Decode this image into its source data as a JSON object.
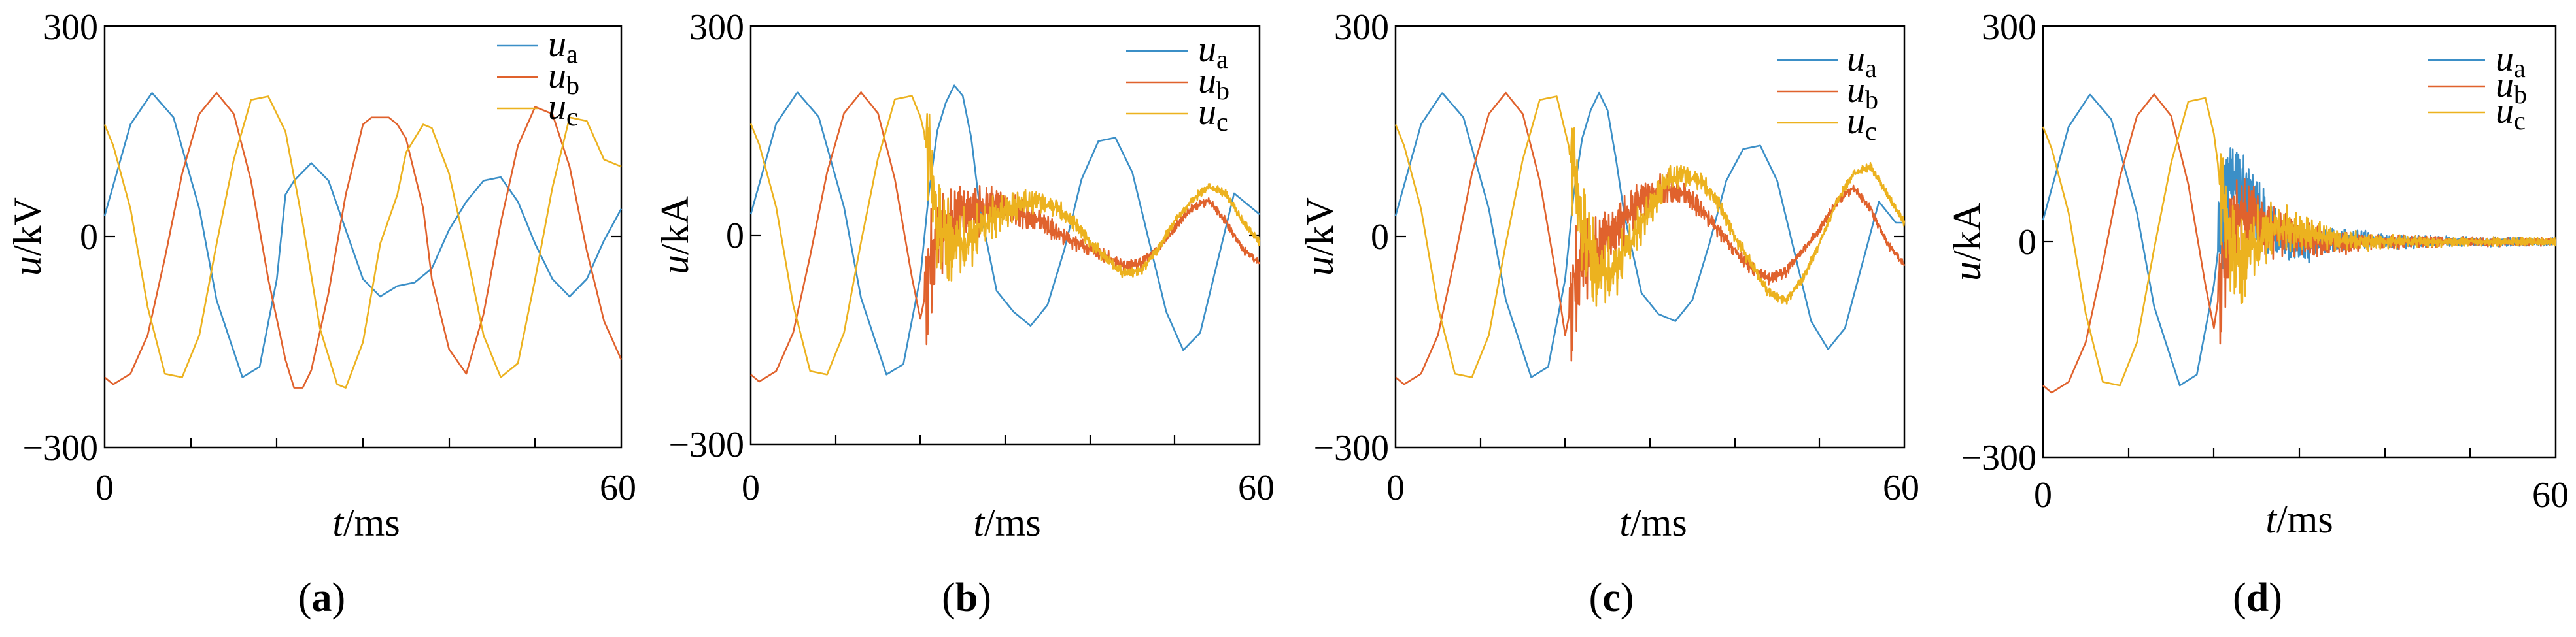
{
  "figure": {
    "series_colors": {
      "ua": "#3b8fc7",
      "ub": "#e0622d",
      "uc": "#ecb21f"
    }
  },
  "chart_data": [
    {
      "type": "line",
      "panel": "a",
      "caption": {
        "open": "(",
        "letter": "a",
        "close": ")"
      },
      "xlabel": {
        "var": "t",
        "unit": "/ms"
      },
      "ylabel": {
        "var": "u",
        "unit": "/kV"
      },
      "xlim": [
        0,
        60
      ],
      "ylim": [
        -300,
        300
      ],
      "x_tick_labels": [
        "0",
        "60"
      ],
      "y_tick_labels": [
        "300",
        "0",
        "−300"
      ],
      "legend": {
        "position": "top-right",
        "entries": [
          {
            "base": "u",
            "sub": "a"
          },
          {
            "base": "u",
            "sub": "b"
          },
          {
            "base": "u",
            "sub": "c"
          }
        ]
      },
      "series": [
        {
          "name": "ua",
          "color": "#3b8fc7",
          "x": [
            0,
            3,
            5.5,
            8,
            11,
            13,
            16,
            18,
            20,
            21,
            22,
            24,
            26,
            28,
            30,
            32,
            34,
            36,
            38,
            40,
            42,
            44,
            46,
            48,
            50,
            52,
            54,
            56,
            58,
            60
          ],
          "y": [
            30,
            160,
            205,
            170,
            40,
            -90,
            -200,
            -185,
            -60,
            60,
            80,
            105,
            80,
            10,
            -60,
            -85,
            -70,
            -65,
            -45,
            10,
            50,
            80,
            85,
            50,
            -10,
            -60,
            -85,
            -60,
            -5,
            40
          ]
        },
        {
          "name": "ub",
          "color": "#e0622d",
          "x": [
            0,
            1,
            3,
            5,
            7,
            9,
            11,
            13,
            15,
            17,
            19,
            21,
            22,
            23,
            24,
            26,
            28,
            30,
            31,
            33,
            34,
            35,
            37,
            38,
            40,
            42,
            44,
            46,
            48,
            50,
            52,
            54,
            56,
            58,
            60
          ],
          "y": [
            -200,
            -210,
            -195,
            -140,
            -30,
            90,
            175,
            205,
            175,
            80,
            -60,
            -175,
            -215,
            -215,
            -190,
            -80,
            60,
            160,
            170,
            170,
            160,
            140,
            40,
            -60,
            -160,
            -195,
            -110,
            20,
            130,
            185,
            175,
            100,
            -20,
            -120,
            -175
          ]
        },
        {
          "name": "uc",
          "color": "#ecb21f",
          "x": [
            0,
            1,
            3,
            5,
            7,
            9,
            11,
            13,
            15,
            17,
            19,
            21,
            23,
            25,
            27,
            28,
            30,
            32,
            34,
            35,
            37,
            38,
            40,
            42,
            44,
            46,
            48,
            50,
            52,
            54,
            56,
            58,
            60
          ],
          "y": [
            160,
            130,
            40,
            -100,
            -195,
            -200,
            -140,
            -10,
            110,
            195,
            200,
            150,
            20,
            -130,
            -210,
            -215,
            -150,
            -10,
            60,
            120,
            160,
            155,
            90,
            -20,
            -140,
            -200,
            -180,
            -60,
            70,
            170,
            165,
            110,
            100
          ]
        }
      ]
    },
    {
      "type": "line",
      "panel": "b",
      "caption": {
        "open": "(",
        "letter": "b",
        "close": ")"
      },
      "xlabel": {
        "var": "t",
        "unit": "/ms"
      },
      "ylabel": {
        "var": "u",
        "unit": "/kA"
      },
      "xlim": [
        0,
        60
      ],
      "ylim": [
        -300,
        300
      ],
      "x_tick_labels": [
        "0",
        "60"
      ],
      "y_tick_labels": [
        "300",
        "0",
        "−300"
      ],
      "legend": {
        "position": "top-right",
        "entries": [
          {
            "base": "u",
            "sub": "a"
          },
          {
            "base": "u",
            "sub": "b"
          },
          {
            "base": "u",
            "sub": "c"
          }
        ]
      },
      "series": [
        {
          "name": "ua",
          "color": "#3b8fc7",
          "x": [
            0,
            3,
            5.5,
            8,
            11,
            13,
            16,
            18,
            20,
            21,
            22,
            23,
            24,
            25,
            26,
            27,
            29,
            31,
            33,
            35,
            37,
            39,
            41,
            43,
            45,
            47,
            49,
            51,
            53,
            55,
            57,
            59,
            60
          ],
          "y": [
            30,
            160,
            205,
            170,
            40,
            -90,
            -200,
            -185,
            -60,
            60,
            150,
            190,
            215,
            200,
            140,
            40,
            -80,
            -110,
            -130,
            -100,
            -20,
            80,
            135,
            140,
            90,
            -10,
            -110,
            -165,
            -140,
            -40,
            60,
            40,
            30
          ]
        },
        {
          "name": "ub",
          "color": "#e0622d",
          "noisy": true,
          "x": [
            0,
            1,
            3,
            5,
            7,
            9,
            11,
            13,
            15,
            17,
            19,
            20,
            21,
            22,
            24,
            26,
            28,
            30,
            32,
            34,
            36,
            38,
            40,
            42,
            44,
            46,
            48,
            50,
            52,
            54,
            56,
            58,
            60
          ],
          "y": [
            -200,
            -210,
            -195,
            -140,
            -30,
            90,
            175,
            205,
            175,
            80,
            -60,
            -120,
            -60,
            0,
            20,
            35,
            40,
            40,
            30,
            20,
            5,
            -10,
            -20,
            -30,
            -45,
            -40,
            -20,
            10,
            40,
            50,
            20,
            -20,
            -40
          ]
        },
        {
          "name": "uc",
          "color": "#ecb21f",
          "noisy": true,
          "x": [
            0,
            1,
            3,
            5,
            7,
            9,
            11,
            13,
            15,
            17,
            19,
            20,
            21,
            22,
            24,
            26,
            28,
            30,
            32,
            34,
            36,
            38,
            40,
            42,
            44,
            46,
            48,
            50,
            52,
            54,
            56,
            58,
            60
          ],
          "y": [
            160,
            130,
            40,
            -100,
            -195,
            -200,
            -140,
            -10,
            110,
            195,
            200,
            170,
            120,
            20,
            -20,
            0,
            20,
            35,
            45,
            50,
            40,
            20,
            -10,
            -35,
            -55,
            -50,
            -20,
            20,
            50,
            70,
            60,
            20,
            -10
          ]
        }
      ]
    },
    {
      "type": "line",
      "panel": "c",
      "caption": {
        "open": "(",
        "letter": "c",
        "close": ")"
      },
      "xlabel": {
        "var": "t",
        "unit": "/ms"
      },
      "ylabel": {
        "var": "u",
        "unit": "/kV"
      },
      "xlim": [
        0,
        60
      ],
      "ylim": [
        -300,
        300
      ],
      "x_tick_labels": [
        "0",
        "60"
      ],
      "y_tick_labels": [
        "300",
        "0",
        "−300"
      ],
      "legend": {
        "position": "top-right",
        "entries": [
          {
            "base": "u",
            "sub": "a"
          },
          {
            "base": "u",
            "sub": "b"
          },
          {
            "base": "u",
            "sub": "c"
          }
        ]
      },
      "series": [
        {
          "name": "ua",
          "color": "#3b8fc7",
          "x": [
            0,
            3,
            5.5,
            8,
            11,
            13,
            16,
            18,
            20,
            21,
            22,
            23,
            24,
            25,
            26,
            27,
            29,
            31,
            33,
            35,
            37,
            39,
            41,
            43,
            45,
            47,
            49,
            51,
            53,
            55,
            57,
            59,
            60
          ],
          "y": [
            30,
            160,
            205,
            170,
            40,
            -90,
            -200,
            -185,
            -60,
            60,
            140,
            180,
            205,
            180,
            110,
            30,
            -80,
            -110,
            -120,
            -90,
            -10,
            80,
            125,
            130,
            80,
            -20,
            -120,
            -160,
            -130,
            -40,
            50,
            20,
            20
          ]
        },
        {
          "name": "ub",
          "color": "#e0622d",
          "noisy": true,
          "x": [
            0,
            1,
            3,
            5,
            7,
            9,
            11,
            13,
            15,
            17,
            19,
            20,
            21,
            22,
            24,
            26,
            28,
            30,
            32,
            34,
            36,
            38,
            40,
            42,
            44,
            46,
            48,
            50,
            52,
            54,
            56,
            58,
            60
          ],
          "y": [
            -200,
            -210,
            -195,
            -140,
            -30,
            90,
            175,
            205,
            175,
            80,
            -60,
            -140,
            -80,
            -30,
            -20,
            10,
            40,
            60,
            70,
            60,
            40,
            10,
            -20,
            -45,
            -60,
            -50,
            -20,
            10,
            50,
            70,
            40,
            -10,
            -40
          ]
        },
        {
          "name": "uc",
          "color": "#ecb21f",
          "noisy": true,
          "x": [
            0,
            1,
            3,
            5,
            7,
            9,
            11,
            13,
            15,
            17,
            19,
            20,
            21,
            22,
            24,
            26,
            28,
            30,
            32,
            34,
            36,
            38,
            40,
            42,
            44,
            46,
            48,
            50,
            52,
            54,
            56,
            58,
            60
          ],
          "y": [
            160,
            130,
            40,
            -100,
            -195,
            -200,
            -140,
            -10,
            110,
            195,
            200,
            150,
            100,
            20,
            -60,
            -40,
            0,
            40,
            80,
            90,
            80,
            50,
            0,
            -40,
            -80,
            -90,
            -60,
            -10,
            50,
            90,
            100,
            60,
            20
          ]
        }
      ]
    },
    {
      "type": "line",
      "panel": "d",
      "caption": {
        "open": "(",
        "letter": "d",
        "close": ")"
      },
      "xlabel": {
        "var": "t",
        "unit": "/ms"
      },
      "ylabel": {
        "var": "u",
        "unit": "/kA"
      },
      "xlim": [
        0,
        60
      ],
      "ylim": [
        -300,
        300
      ],
      "x_tick_labels": [
        "0",
        "60"
      ],
      "y_tick_labels": [
        "300",
        "0",
        "−300"
      ],
      "legend": {
        "position": "top-right",
        "entries": [
          {
            "base": "u",
            "sub": "a"
          },
          {
            "base": "u",
            "sub": "b"
          },
          {
            "base": "u",
            "sub": "c"
          }
        ]
      },
      "series": [
        {
          "name": "ua",
          "color": "#3b8fc7",
          "noisy": true,
          "x": [
            0,
            3,
            5.5,
            8,
            11,
            13,
            16,
            18,
            20,
            21,
            22,
            23,
            24,
            25,
            26,
            27,
            28,
            30,
            32,
            34,
            36,
            38,
            40,
            45,
            50,
            55,
            60
          ],
          "y": [
            30,
            160,
            205,
            170,
            40,
            -90,
            -200,
            -185,
            -60,
            40,
            80,
            75,
            60,
            40,
            25,
            15,
            5,
            -5,
            -5,
            0,
            3,
            2,
            0,
            0,
            0,
            0,
            0
          ]
        },
        {
          "name": "ub",
          "color": "#e0622d",
          "noisy": true,
          "x": [
            0,
            1,
            3,
            5,
            7,
            9,
            11,
            13,
            15,
            17,
            19,
            20,
            21,
            22,
            23,
            24,
            25,
            26,
            28,
            30,
            32,
            34,
            36,
            38,
            40,
            45,
            50,
            55,
            60
          ],
          "y": [
            -200,
            -210,
            -195,
            -140,
            -30,
            90,
            175,
            205,
            175,
            80,
            -60,
            -120,
            -40,
            20,
            40,
            35,
            30,
            20,
            10,
            5,
            0,
            -3,
            -2,
            0,
            0,
            0,
            0,
            0,
            0
          ]
        },
        {
          "name": "uc",
          "color": "#ecb21f",
          "noisy": true,
          "x": [
            0,
            1,
            3,
            5,
            7,
            9,
            11,
            13,
            15,
            17,
            19,
            20,
            21,
            22,
            23,
            24,
            25,
            26,
            28,
            30,
            32,
            34,
            36,
            38,
            40,
            45,
            50,
            55,
            60
          ],
          "y": [
            160,
            130,
            40,
            -100,
            -195,
            -200,
            -140,
            -10,
            110,
            195,
            200,
            150,
            60,
            0,
            -30,
            -20,
            0,
            15,
            20,
            15,
            10,
            5,
            3,
            0,
            0,
            0,
            0,
            0,
            0
          ]
        }
      ]
    }
  ]
}
